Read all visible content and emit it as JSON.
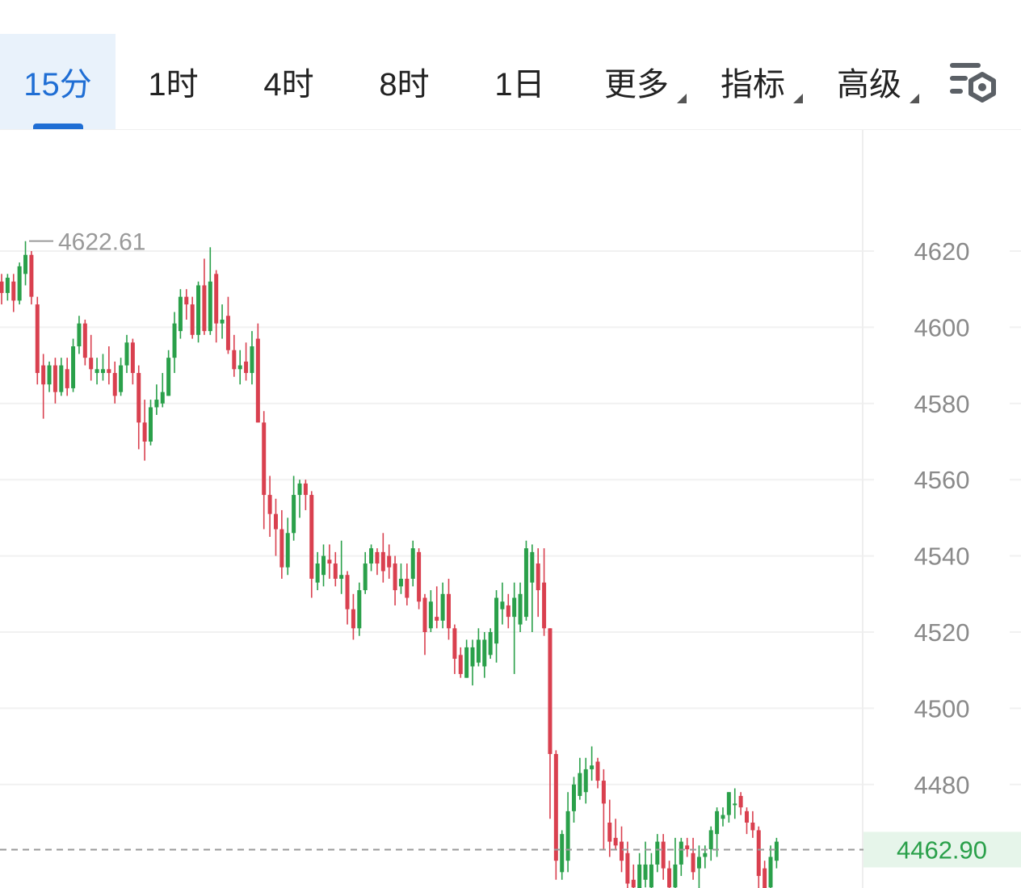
{
  "tabs": [
    {
      "label": "15分",
      "active": true,
      "dropdown": false
    },
    {
      "label": "1时",
      "active": false,
      "dropdown": false
    },
    {
      "label": "4时",
      "active": false,
      "dropdown": false
    },
    {
      "label": "8时",
      "active": false,
      "dropdown": false
    },
    {
      "label": "1日",
      "active": false,
      "dropdown": false
    },
    {
      "label": "更多",
      "active": false,
      "dropdown": true
    },
    {
      "label": "指标",
      "active": false,
      "dropdown": true
    },
    {
      "label": "高级",
      "active": false,
      "dropdown": true
    }
  ],
  "settings_icon": "chart-settings-icon",
  "colors": {
    "up": "#2aa04a",
    "down": "#d9404f",
    "accent": "#1f6ed4",
    "current_price": "#2aa04a"
  },
  "chart_data": {
    "type": "candlestick",
    "interval": "15分",
    "y_ticks": [
      4620,
      4600,
      4580,
      4560,
      4540,
      4520,
      4500,
      4480
    ],
    "y_ticks_text": [
      "4620",
      "4600",
      "4580",
      "4560",
      "4540",
      "4520",
      "4500",
      "4480"
    ],
    "ylim": [
      4451,
      4654
    ],
    "grid": true,
    "max_marker": {
      "value": 4622.61,
      "text": "4622.61"
    },
    "current_price": {
      "value": 4462.9,
      "text": "4462.90"
    },
    "candles": [
      [
        4612,
        4609,
        4614,
        4606
      ],
      [
        4609,
        4613,
        4614,
        4607
      ],
      [
        4612,
        4607,
        4614,
        4604
      ],
      [
        4607,
        4616,
        4617,
        4606
      ],
      [
        4614,
        4619,
        4622.6,
        4611
      ],
      [
        4619,
        4608,
        4620,
        4606
      ],
      [
        4606,
        4588,
        4608,
        4585
      ],
      [
        4590,
        4585,
        4593,
        4576
      ],
      [
        4585,
        4590,
        4591,
        4583
      ],
      [
        4590,
        4583,
        4592,
        4580
      ],
      [
        4583,
        4590,
        4592,
        4582
      ],
      [
        4589,
        4584,
        4592,
        4582
      ],
      [
        4584,
        4595,
        4597,
        4583
      ],
      [
        4595,
        4601,
        4603,
        4593
      ],
      [
        4601,
        4592,
        4602,
        4590
      ],
      [
        4592,
        4589,
        4598,
        4586
      ],
      [
        4588,
        4589,
        4592,
        4585
      ],
      [
        4588,
        4589,
        4593,
        4586
      ],
      [
        4589,
        4588,
        4595,
        4585
      ],
      [
        4588,
        4582,
        4591,
        4580
      ],
      [
        4583,
        4590,
        4592,
        4582
      ],
      [
        4590,
        4596,
        4598,
        4588
      ],
      [
        4596,
        4588,
        4597,
        4585
      ],
      [
        4588,
        4575,
        4590,
        4568
      ],
      [
        4575,
        4570,
        4581,
        4565
      ],
      [
        4570,
        4579,
        4581,
        4569
      ],
      [
        4579,
        4581,
        4585,
        4577
      ],
      [
        4580,
        4583,
        4588,
        4579
      ],
      [
        4582,
        4592,
        4594,
        4582
      ],
      [
        4592,
        4601,
        4604,
        4588
      ],
      [
        4599,
        4608,
        4610,
        4597
      ],
      [
        4608,
        4606,
        4610,
        4602
      ],
      [
        4606,
        4598,
        4608,
        4597
      ],
      [
        4598,
        4611,
        4612,
        4596
      ],
      [
        4611,
        4599,
        4618,
        4598
      ],
      [
        4599,
        4612,
        4621,
        4598
      ],
      [
        4614,
        4601,
        4615,
        4596
      ],
      [
        4601,
        4602,
        4606,
        4597
      ],
      [
        4603,
        4594,
        4608,
        4593
      ],
      [
        4594,
        4589,
        4598,
        4587
      ],
      [
        4589,
        4590,
        4594,
        4585
      ],
      [
        4591,
        4588,
        4596,
        4586
      ],
      [
        4588,
        4595,
        4599,
        4585
      ],
      [
        4597,
        4575,
        4601,
        4575
      ],
      [
        4575,
        4556,
        4578,
        4547
      ],
      [
        4556,
        4551,
        4561,
        4545
      ],
      [
        4551,
        4547,
        4555,
        4540
      ],
      [
        4547,
        4537,
        4552,
        4534
      ],
      [
        4537,
        4546,
        4550,
        4535
      ],
      [
        4546,
        4556,
        4561,
        4544
      ],
      [
        4556,
        4559,
        4560,
        4550
      ],
      [
        4559,
        4556,
        4560,
        4552
      ],
      [
        4556,
        4534,
        4557,
        4529
      ],
      [
        4533,
        4538,
        4541,
        4531
      ],
      [
        4535,
        4540,
        4543,
        4532
      ],
      [
        4539,
        4538,
        4543,
        4534
      ],
      [
        4538,
        4534,
        4541,
        4532
      ],
      [
        4534,
        4535,
        4544,
        4530
      ],
      [
        4535,
        4526,
        4536,
        4522
      ],
      [
        4526,
        4521,
        4530,
        4518
      ],
      [
        4521,
        4531,
        4533,
        4519
      ],
      [
        4531,
        4538,
        4541,
        4530
      ],
      [
        4538,
        4542,
        4543,
        4536
      ],
      [
        4541,
        4538,
        4542,
        4535
      ],
      [
        4541,
        4536,
        4546,
        4533
      ],
      [
        4540,
        4537,
        4543,
        4534
      ],
      [
        4538,
        4531,
        4540,
        4527
      ],
      [
        4532,
        4534,
        4538,
        4530
      ],
      [
        4534,
        4529,
        4538,
        4527
      ],
      [
        4534,
        4542,
        4544,
        4532
      ],
      [
        4541,
        4528,
        4542,
        4526
      ],
      [
        4529,
        4520,
        4530,
        4514
      ],
      [
        4521,
        4528,
        4531,
        4520
      ],
      [
        4524,
        4523,
        4532,
        4521
      ],
      [
        4523,
        4530,
        4533,
        4521
      ],
      [
        4530,
        4521,
        4534,
        4518
      ],
      [
        4521,
        4513,
        4522,
        4509
      ],
      [
        4514,
        4509,
        4516,
        4508
      ],
      [
        4508,
        4516,
        4518,
        4508
      ],
      [
        4511,
        4516,
        4518,
        4506
      ],
      [
        4512,
        4518,
        4521,
        4511
      ],
      [
        4511,
        4518,
        4520,
        4508
      ],
      [
        4514,
        4520,
        4521,
        4513
      ],
      [
        4517,
        4529,
        4531,
        4512
      ],
      [
        4526,
        4528,
        4533,
        4522
      ],
      [
        4527,
        4524,
        4530,
        4521
      ],
      [
        4524,
        4529,
        4533,
        4509
      ],
      [
        4522,
        4530,
        4533,
        4520
      ],
      [
        4524,
        4542,
        4544,
        4523
      ],
      [
        4533,
        4541,
        4543,
        4520
      ],
      [
        4538,
        4531,
        4542,
        4524
      ],
      [
        4533,
        4521,
        4542,
        4519
      ],
      [
        4521,
        4488,
        4521,
        4471
      ],
      [
        4488,
        4460,
        4489,
        4455
      ],
      [
        4457,
        4467,
        4468,
        4455
      ],
      [
        4460,
        4473,
        4478,
        4457
      ],
      [
        4473,
        4480,
        4482,
        4470
      ],
      [
        4477,
        4483,
        4487,
        4476
      ],
      [
        4478,
        4484,
        4487,
        4475
      ],
      [
        4484,
        4485,
        4490,
        4481
      ],
      [
        4486,
        4481,
        4487,
        4479
      ],
      [
        4481,
        4475,
        4484,
        4463
      ],
      [
        4470,
        4465,
        4476,
        4461
      ],
      [
        4466,
        4464,
        4471,
        4463
      ],
      [
        4465,
        4460,
        4469,
        4457
      ],
      [
        4462,
        4454,
        4465,
        4451
      ],
      [
        4455,
        4453,
        4459,
        4451
      ],
      [
        4451,
        4459,
        4462,
        4451
      ],
      [
        4455,
        4459,
        4465,
        4453
      ],
      [
        4453,
        4459,
        4462,
        4451
      ],
      [
        4459,
        4465,
        4467,
        4457
      ],
      [
        4465,
        4458,
        4467,
        4455
      ],
      [
        4458,
        4453,
        4460,
        4451
      ],
      [
        4453,
        4459,
        4466,
        4451
      ],
      [
        4459,
        4465,
        4466,
        4456
      ],
      [
        4464,
        4463,
        4466,
        4461
      ],
      [
        4462,
        4457,
        4466,
        4455
      ],
      [
        4458,
        4461,
        4464,
        4451
      ],
      [
        4461,
        4462,
        4464,
        4458
      ],
      [
        4463,
        4468,
        4469,
        4460
      ],
      [
        4467,
        4473,
        4474,
        4461
      ],
      [
        4471,
        4472,
        4474,
        4469
      ],
      [
        4472,
        4478,
        4478,
        4470
      ],
      [
        4475,
        4475,
        4479,
        4471
      ],
      [
        4477,
        4474,
        4478,
        4472
      ],
      [
        4473,
        4470,
        4474,
        4467
      ],
      [
        4470,
        4468,
        4473,
        4466
      ],
      [
        4468,
        4456,
        4469,
        4451
      ],
      [
        4458,
        4452,
        4460,
        4451
      ],
      [
        4453,
        4461,
        4464,
        4451
      ],
      [
        4460,
        4465,
        4466,
        4458
      ]
    ]
  }
}
